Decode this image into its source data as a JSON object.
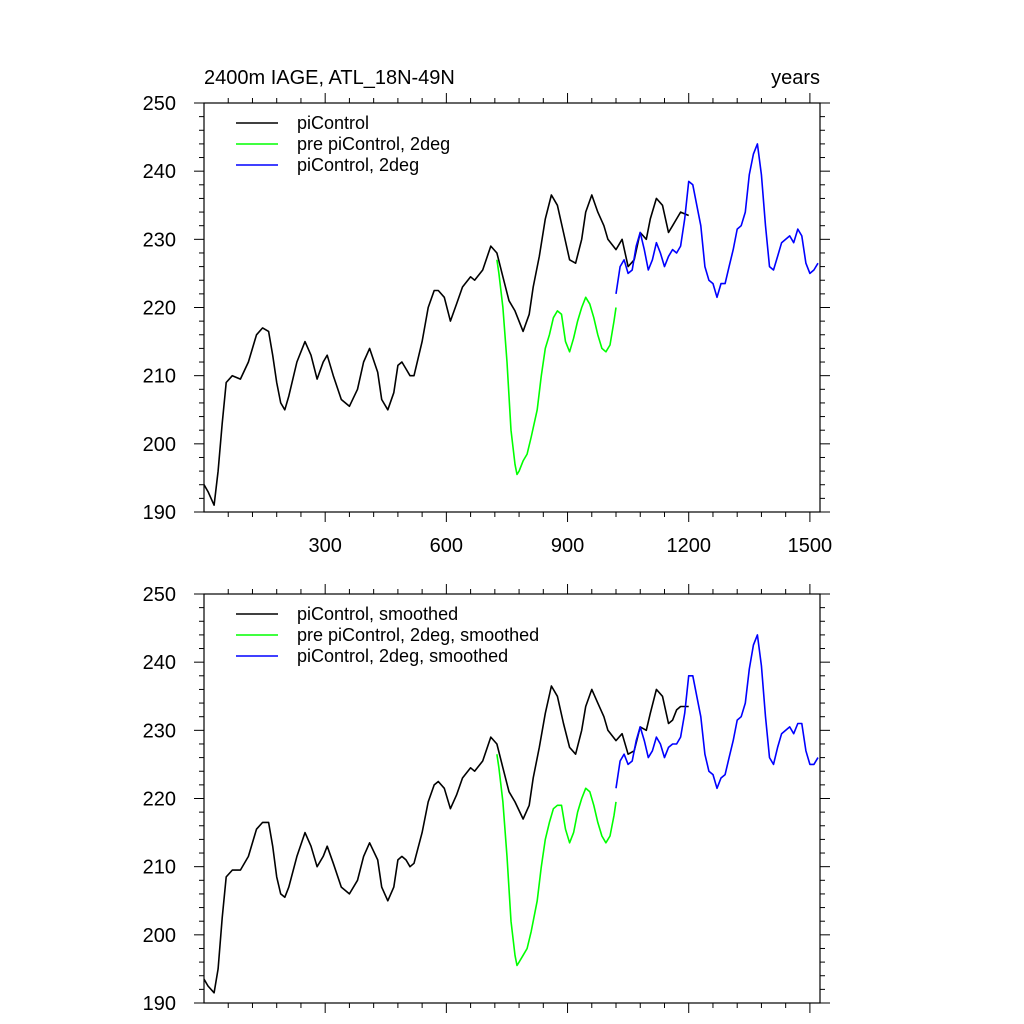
{
  "chart_data": [
    {
      "type": "line",
      "title": "2400m IAGE, ATL_18N-49N",
      "right_title": "years",
      "xlim": [
        0,
        1525
      ],
      "ylim": [
        190,
        250
      ],
      "x_ticks": [
        300,
        600,
        900,
        1200,
        1500
      ],
      "x_tick_labels": [
        "300",
        "600",
        "900",
        "1200",
        "1500"
      ],
      "y_ticks": [
        190,
        200,
        210,
        220,
        230,
        240,
        250
      ],
      "y_tick_labels": [
        "190",
        "200",
        "210",
        "220",
        "230",
        "240",
        "250"
      ],
      "legend_position": "top-left",
      "series": [
        {
          "name": "piControl",
          "color": "#000000",
          "x": [
            0,
            10,
            25,
            35,
            45,
            55,
            70,
            90,
            110,
            130,
            145,
            160,
            170,
            180,
            190,
            200,
            210,
            230,
            250,
            265,
            280,
            295,
            305,
            320,
            340,
            360,
            380,
            395,
            410,
            430,
            440,
            455,
            470,
            480,
            490,
            500,
            510,
            520,
            540,
            555,
            570,
            580,
            595,
            610,
            625,
            640,
            660,
            670,
            690,
            710,
            725,
            740,
            755,
            770,
            790,
            805,
            815,
            830,
            845,
            860,
            875,
            890,
            905,
            920,
            935,
            945,
            960,
            975,
            990,
            1000,
            1020,
            1035,
            1050,
            1065,
            1080,
            1095,
            1105,
            1120,
            1135,
            1150,
            1160,
            1170,
            1180,
            1200
          ],
          "y": [
            194,
            193,
            191,
            196,
            203,
            209,
            210,
            209.5,
            212,
            216,
            217,
            216.5,
            213,
            209,
            206,
            205,
            207,
            212,
            215,
            213,
            209.5,
            212,
            213,
            210,
            206.5,
            205.5,
            208,
            212,
            214,
            210.5,
            206.5,
            205,
            207.5,
            211.5,
            212,
            211,
            210,
            210,
            215,
            220,
            222.5,
            222.5,
            221.5,
            218,
            220.5,
            223,
            224.5,
            224,
            225.5,
            229,
            228,
            224.5,
            221,
            219.5,
            216.5,
            219,
            223,
            227.5,
            233,
            236.5,
            235,
            231,
            227,
            226.5,
            230,
            234,
            236.5,
            234,
            232,
            230,
            228.5,
            230,
            226,
            227,
            231,
            230,
            233,
            236,
            235,
            231,
            232,
            233,
            234,
            233.5
          ]
        },
        {
          "name": "pre piControl, 2deg",
          "color": "#00ff00",
          "x": [
            725,
            730,
            740,
            750,
            760,
            770,
            775,
            780,
            790,
            800,
            810,
            825,
            835,
            845,
            855,
            865,
            875,
            885,
            895,
            905,
            915,
            925,
            935,
            945,
            955,
            965,
            975,
            985,
            995,
            1005,
            1015,
            1020
          ],
          "y": [
            227,
            225,
            220,
            212,
            202,
            197,
            195.5,
            196,
            197.5,
            198.5,
            201,
            205,
            210,
            214,
            216,
            218.5,
            219.5,
            219,
            215,
            213.5,
            215.5,
            218,
            220,
            221.5,
            220.5,
            218.5,
            216,
            214,
            213.5,
            214.5,
            218,
            220
          ]
        },
        {
          "name": "piControl, 2deg",
          "color": "#0000ff",
          "x": [
            1020,
            1030,
            1040,
            1050,
            1060,
            1070,
            1080,
            1090,
            1100,
            1110,
            1120,
            1130,
            1140,
            1150,
            1160,
            1170,
            1180,
            1190,
            1200,
            1210,
            1220,
            1230,
            1240,
            1250,
            1260,
            1270,
            1280,
            1290,
            1300,
            1310,
            1320,
            1330,
            1340,
            1350,
            1360,
            1370,
            1380,
            1390,
            1400,
            1410,
            1420,
            1430,
            1440,
            1450,
            1460,
            1470,
            1480,
            1490,
            1500,
            1510,
            1520
          ],
          "y": [
            222,
            226,
            227,
            225,
            225.5,
            229,
            231,
            228.5,
            225.5,
            227,
            229.5,
            228,
            226,
            227.5,
            228.5,
            228,
            229,
            233,
            238.5,
            238,
            235,
            232,
            226,
            224,
            223.5,
            221.5,
            223.5,
            223.5,
            226,
            228.5,
            231.5,
            232,
            234,
            239.5,
            242.5,
            244,
            239.5,
            232,
            226,
            225.5,
            227.5,
            229.5,
            230,
            230.5,
            229.5,
            231.5,
            230.5,
            226.5,
            225,
            225.5,
            226.5
          ]
        }
      ]
    },
    {
      "type": "line",
      "xlim": [
        0,
        1525
      ],
      "ylim": [
        190,
        250
      ],
      "x_ticks": [
        300,
        600,
        900,
        1200,
        1500
      ],
      "y_ticks": [
        190,
        200,
        210,
        220,
        230,
        240,
        250
      ],
      "y_tick_labels": [
        "190",
        "200",
        "210",
        "220",
        "230",
        "240",
        "250"
      ],
      "legend_position": "top-left",
      "series": [
        {
          "name": "piControl, smoothed",
          "color": "#000000",
          "x": [
            0,
            10,
            25,
            35,
            45,
            55,
            70,
            90,
            110,
            130,
            145,
            160,
            170,
            180,
            190,
            200,
            210,
            230,
            250,
            265,
            280,
            295,
            305,
            320,
            340,
            360,
            380,
            395,
            410,
            430,
            440,
            455,
            470,
            480,
            490,
            500,
            510,
            520,
            540,
            555,
            570,
            580,
            595,
            610,
            625,
            640,
            660,
            670,
            690,
            710,
            725,
            740,
            755,
            770,
            790,
            805,
            815,
            830,
            845,
            860,
            875,
            890,
            905,
            920,
            935,
            945,
            960,
            975,
            990,
            1000,
            1020,
            1035,
            1050,
            1065,
            1080,
            1095,
            1105,
            1120,
            1135,
            1150,
            1160,
            1170,
            1180,
            1200
          ],
          "y": [
            193.5,
            192.5,
            191.5,
            195,
            202.5,
            208.5,
            209.5,
            209.5,
            211.5,
            215.5,
            216.5,
            216.5,
            213,
            208.5,
            206,
            205.5,
            207,
            211.5,
            215,
            213,
            210,
            211.5,
            213,
            210.5,
            207,
            206,
            208,
            211.5,
            213.5,
            211,
            207,
            205,
            207,
            211,
            211.5,
            211,
            210,
            210.5,
            215,
            219.5,
            222,
            222.5,
            221.5,
            218.5,
            220.5,
            223,
            224.5,
            224,
            225.5,
            229,
            228,
            224.5,
            221,
            219.5,
            217,
            219,
            223,
            227.5,
            232.5,
            236.5,
            235,
            231,
            227.5,
            226.5,
            230,
            233.5,
            236,
            234,
            232,
            230,
            228.5,
            229.5,
            226.5,
            227,
            230.5,
            230,
            232.5,
            236,
            235,
            231,
            231.5,
            233,
            233.5,
            233.5
          ]
        },
        {
          "name": "pre piControl, 2deg, smoothed",
          "color": "#00ff00",
          "x": [
            725,
            730,
            740,
            750,
            760,
            770,
            775,
            780,
            790,
            800,
            810,
            825,
            835,
            845,
            855,
            865,
            875,
            885,
            895,
            905,
            915,
            925,
            935,
            945,
            955,
            965,
            975,
            985,
            995,
            1005,
            1015,
            1020
          ],
          "y": [
            226.5,
            224.5,
            219.5,
            211.5,
            202,
            197,
            195.5,
            196,
            197,
            198,
            200.5,
            205,
            210,
            214,
            216.5,
            218.5,
            219,
            219,
            215.5,
            213.5,
            215,
            218,
            220,
            221.5,
            221,
            219,
            216.5,
            214.5,
            213.5,
            214.5,
            217.5,
            219.5
          ]
        },
        {
          "name": "piControl, 2deg, smoothed",
          "color": "#0000ff",
          "x": [
            1020,
            1030,
            1040,
            1050,
            1060,
            1070,
            1080,
            1090,
            1100,
            1110,
            1120,
            1130,
            1140,
            1150,
            1160,
            1170,
            1180,
            1190,
            1200,
            1210,
            1220,
            1230,
            1240,
            1250,
            1260,
            1270,
            1280,
            1290,
            1300,
            1310,
            1320,
            1330,
            1340,
            1350,
            1360,
            1370,
            1380,
            1390,
            1400,
            1410,
            1420,
            1430,
            1440,
            1450,
            1460,
            1470,
            1480,
            1490,
            1500,
            1510,
            1520
          ],
          "y": [
            221.5,
            225.5,
            226.5,
            225,
            225.5,
            228.5,
            230.5,
            228.5,
            226,
            227,
            229,
            228,
            226,
            227.5,
            228,
            228,
            229,
            232.5,
            238,
            238,
            235,
            232,
            226.5,
            224,
            223.5,
            221.5,
            223,
            223.5,
            226,
            228.5,
            231.5,
            232,
            234,
            239,
            242.5,
            244,
            239.5,
            232,
            226,
            225,
            227.5,
            229.5,
            230,
            230.5,
            229.5,
            231,
            231,
            227,
            225,
            225,
            226
          ]
        }
      ]
    }
  ]
}
